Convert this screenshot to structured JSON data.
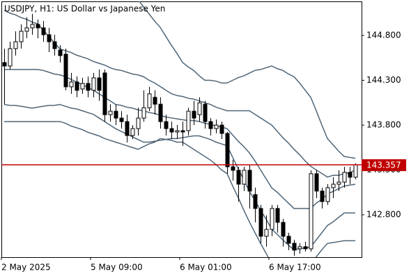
{
  "chart_data": {
    "type": "candlestick",
    "title": "USDJPY, H1:  US Dollar vs Japanese Yen",
    "categories": [
      "2 May 2025",
      null,
      null,
      null,
      null,
      null,
      null,
      null,
      null,
      null,
      null,
      null,
      null,
      null,
      null,
      null,
      "5 May 09:00",
      null,
      null,
      null,
      null,
      null,
      null,
      null,
      null,
      null,
      null,
      null,
      null,
      null,
      null,
      null,
      "6 May 01:00",
      null,
      null,
      null,
      null,
      null,
      null,
      null,
      null,
      null,
      null,
      null,
      null,
      null,
      null,
      null,
      "6 May 17:00",
      null,
      null,
      null,
      null,
      null,
      null,
      null,
      null,
      null,
      null,
      null,
      null,
      null,
      null,
      null
    ],
    "open": [
      144.498,
      144.459,
      144.653,
      144.73,
      144.847,
      144.885,
      144.924,
      144.885,
      144.808,
      144.73,
      144.637,
      144.591,
      144.227,
      144.281,
      144.203,
      144.265,
      144.188,
      144.327,
      144.382,
      143.916,
      143.955,
      143.878,
      143.839,
      143.684,
      143.761,
      143.878,
      143.994,
      144.11,
      144.033,
      143.839,
      143.761,
      143.723,
      143.738,
      143.738,
      143.955,
      143.916,
      144.033,
      143.839,
      143.761,
      143.8,
      143.707,
      143.335,
      143.296,
      143.141,
      143.296,
      143.025,
      142.87,
      142.56,
      142.637,
      142.87,
      142.715,
      142.56,
      142.482,
      142.42,
      142.444,
      142.42,
      143.258,
      143.064,
      142.947,
      143.102,
      143.141,
      143.164,
      143.273,
      143.219
    ],
    "high": [
      144.653,
      144.73,
      144.847,
      144.924,
      145.002,
      145.04,
      144.978,
      144.963,
      144.885,
      144.808,
      144.692,
      144.653,
      144.382,
      144.343,
      144.327,
      144.343,
      144.382,
      144.42,
      144.42,
      144.033,
      144.033,
      143.955,
      143.916,
      143.8,
      143.994,
      144.188,
      144.227,
      144.188,
      144.11,
      143.916,
      143.839,
      143.8,
      143.839,
      143.994,
      144.071,
      144.11,
      144.071,
      143.878,
      143.862,
      143.839,
      143.723,
      143.413,
      143.335,
      143.335,
      143.351,
      143.102,
      142.909,
      142.792,
      142.909,
      142.909,
      142.754,
      142.599,
      142.521,
      142.482,
      142.498,
      143.296,
      143.296,
      143.102,
      143.141,
      143.219,
      143.296,
      143.335,
      143.335,
      143.374
    ],
    "low": [
      144.033,
      144.42,
      144.575,
      144.653,
      144.769,
      144.808,
      144.769,
      144.73,
      144.614,
      144.575,
      144.498,
      144.188,
      144.149,
      144.11,
      144.149,
      144.11,
      144.11,
      144.071,
      143.839,
      143.839,
      143.8,
      143.761,
      143.606,
      143.645,
      143.684,
      143.839,
      143.955,
      143.916,
      143.761,
      143.684,
      143.645,
      143.645,
      143.568,
      143.684,
      143.8,
      143.839,
      143.761,
      143.684,
      143.707,
      143.645,
      143.258,
      143.18,
      142.947,
      143.064,
      142.87,
      142.715,
      142.482,
      142.444,
      142.56,
      142.599,
      142.444,
      142.405,
      142.343,
      142.366,
      142.389,
      142.389,
      142.986,
      142.87,
      142.909,
      142.986,
      143.064,
      143.102,
      143.141,
      143.196
    ],
    "close": [
      144.459,
      144.653,
      144.73,
      144.847,
      144.885,
      144.924,
      144.885,
      144.808,
      144.73,
      144.653,
      144.575,
      144.227,
      144.281,
      144.188,
      144.265,
      144.188,
      144.327,
      144.188,
      143.916,
      143.955,
      143.878,
      143.839,
      143.684,
      143.761,
      143.878,
      143.994,
      144.149,
      144.033,
      143.839,
      143.761,
      143.723,
      143.738,
      143.723,
      143.955,
      143.878,
      144.048,
      143.839,
      143.761,
      143.8,
      143.707,
      143.335,
      143.296,
      143.141,
      143.296,
      143.064,
      142.87,
      142.56,
      142.637,
      142.87,
      142.715,
      142.56,
      142.482,
      142.405,
      142.444,
      142.42,
      143.258,
      143.064,
      142.947,
      143.102,
      143.141,
      143.164,
      143.273,
      143.219,
      143.357
    ],
    "bull_color": "#ffffff",
    "bear_color": "#000000",
    "bands": [
      {
        "color": "#4f6577",
        "values": [
          145.51,
          145.5,
          145.49,
          145.48,
          145.48,
          145.47,
          145.46,
          145.45,
          145.44,
          145.44,
          145.43,
          145.41,
          145.4,
          145.38,
          145.37,
          145.35,
          145.34,
          145.32,
          145.31,
          145.29,
          145.27,
          145.25,
          145.24,
          145.22,
          145.2,
          145.12,
          145.04,
          144.96,
          144.89,
          144.79,
          144.69,
          144.6,
          144.5,
          144.45,
          144.41,
          144.35,
          144.3,
          144.3,
          144.29,
          144.27,
          144.27,
          144.3,
          144.33,
          144.35,
          144.38,
          144.41,
          144.42,
          144.44,
          144.46,
          144.43,
          144.41,
          144.37,
          144.34,
          144.27,
          144.19,
          144.11,
          143.96,
          143.8,
          143.65,
          143.58,
          143.51,
          143.45,
          143.44,
          143.43
        ]
      },
      {
        "color": "#4f6577",
        "values": [
          145.08,
          145.05,
          145.03,
          145.0,
          144.98,
          144.95,
          144.93,
          144.86,
          144.79,
          144.72,
          144.65,
          144.63,
          144.61,
          144.58,
          144.56,
          144.54,
          144.51,
          144.49,
          144.47,
          144.44,
          144.42,
          144.41,
          144.39,
          144.37,
          144.36,
          144.34,
          144.3,
          144.27,
          144.23,
          144.19,
          144.15,
          144.13,
          144.12,
          144.1,
          144.09,
          144.07,
          144.05,
          144.03,
          144.0,
          143.98,
          143.96,
          143.96,
          143.96,
          143.96,
          143.96,
          143.92,
          143.88,
          143.84,
          143.8,
          143.73,
          143.66,
          143.6,
          143.53,
          143.47,
          143.4,
          143.34,
          143.3,
          143.26,
          143.22,
          143.24,
          143.24,
          143.26,
          143.27,
          143.3
        ]
      },
      {
        "color": "#4f6577",
        "values": [
          144.42,
          144.42,
          144.42,
          144.42,
          144.42,
          144.42,
          144.42,
          144.41,
          144.39,
          144.37,
          144.36,
          144.34,
          144.31,
          144.28,
          144.25,
          144.22,
          144.19,
          144.15,
          144.11,
          144.07,
          144.03,
          144.02,
          144.0,
          143.99,
          143.97,
          143.96,
          143.94,
          143.93,
          143.91,
          143.89,
          143.88,
          143.87,
          143.86,
          143.85,
          143.85,
          143.84,
          143.82,
          143.81,
          143.79,
          143.78,
          143.76,
          143.69,
          143.62,
          143.56,
          143.49,
          143.4,
          143.3,
          143.2,
          143.1,
          143.05,
          142.99,
          142.93,
          142.87,
          142.87,
          142.87,
          142.87,
          142.93,
          142.97,
          143.03,
          143.06,
          143.09,
          143.12,
          143.13,
          143.14
        ]
      },
      {
        "color": "#4f6577",
        "values": [
          144.03,
          144.02,
          144.02,
          144.01,
          144.0,
          143.99,
          144.0,
          144.01,
          144.02,
          144.02,
          144.03,
          144.01,
          143.99,
          143.98,
          143.96,
          143.94,
          143.92,
          143.88,
          143.84,
          143.8,
          143.76,
          143.73,
          143.7,
          143.67,
          143.64,
          143.61,
          143.61,
          143.62,
          143.63,
          143.64,
          143.65,
          143.65,
          143.66,
          143.67,
          143.68,
          143.68,
          143.66,
          143.64,
          143.61,
          143.59,
          143.57,
          143.44,
          143.31,
          143.19,
          143.06,
          142.96,
          142.85,
          142.75,
          142.64,
          142.58,
          142.52,
          142.46,
          142.41,
          142.42,
          142.43,
          142.44,
          142.52,
          142.6,
          142.68,
          142.72,
          142.77,
          142.82,
          142.82,
          142.82
        ]
      },
      {
        "color": "#4f6577",
        "values": [
          143.84,
          143.84,
          143.84,
          143.84,
          143.84,
          143.84,
          143.84,
          143.84,
          143.84,
          143.84,
          143.84,
          143.82,
          143.79,
          143.77,
          143.75,
          143.72,
          143.7,
          143.68,
          143.65,
          143.63,
          143.61,
          143.59,
          143.57,
          143.55,
          143.53,
          143.56,
          143.59,
          143.61,
          143.65,
          143.64,
          143.63,
          143.61,
          143.61,
          143.57,
          143.53,
          143.49,
          143.45,
          143.41,
          143.36,
          143.3,
          143.26,
          143.12,
          142.99,
          142.85,
          142.72,
          142.6,
          142.48,
          142.37,
          142.25,
          142.21,
          142.17,
          142.13,
          142.1,
          142.15,
          142.2,
          142.25,
          142.33,
          142.41,
          142.48,
          142.49,
          142.5,
          142.51,
          142.51,
          142.51
        ]
      }
    ],
    "current_price": 143.357,
    "current_price_color": "#c00000",
    "ylim": [
      142.327,
      145.18
    ],
    "yticks": [
      {
        "value": 142.8,
        "label": "142.800"
      },
      {
        "value": 143.3,
        "label": "143.300"
      },
      {
        "value": 143.8,
        "label": "143.800"
      },
      {
        "value": 144.3,
        "label": "144.300"
      },
      {
        "value": 144.8,
        "label": "144.800"
      }
    ]
  }
}
